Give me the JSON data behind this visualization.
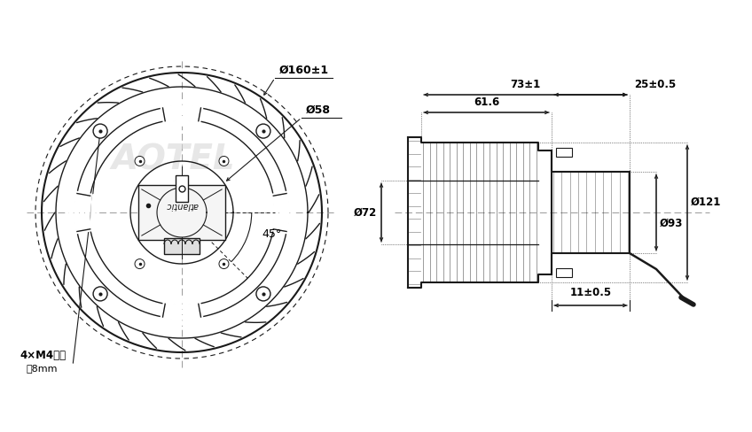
{
  "bg_color": "#ffffff",
  "line_color": "#1a1a1a",
  "dim_color": "#000000",
  "center_line_color": "#999999",
  "annotations_left": {
    "dim_160": "Ø160±1",
    "dim_58": "Ø58",
    "dim_45": "45°",
    "label_holes": "4×M4盲孔",
    "label_depth": "深8mm"
  },
  "annotations_right": {
    "dim_11": "11±0.5",
    "dim_72": "Ø72",
    "dim_93": "Ø93",
    "dim_121": "Ø121",
    "dim_61": "61.6",
    "dim_73": "73±1",
    "dim_25": "25±0.5"
  }
}
